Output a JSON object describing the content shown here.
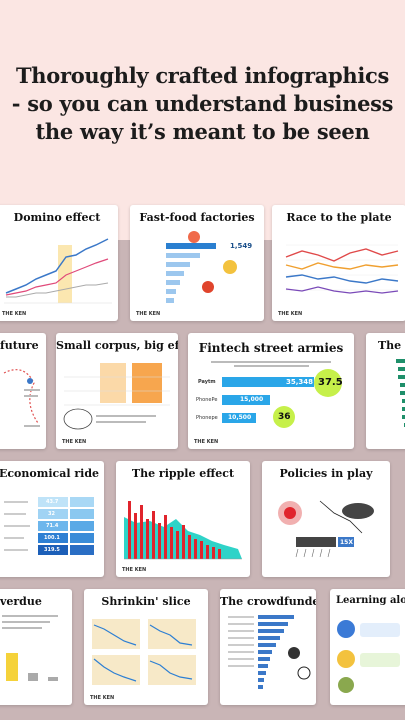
{
  "headline": {
    "line1": "Thoroughly crafted infographics",
    "line2": "- so you can understand business",
    "line3": "the way it’s meant to be seen"
  },
  "cards": {
    "domino": {
      "title": "Domino effect"
    },
    "fastfood": {
      "title": "Fast-food factories",
      "value": "1,549"
    },
    "race": {
      "title": "Race to the plate"
    },
    "future": {
      "title": "future"
    },
    "corpus": {
      "title": "Small corpus, big effort"
    },
    "fintech": {
      "title": "Fintech street armies",
      "rows": [
        {
          "label": "Paytm",
          "value": "35,348",
          "bubble": "37.5"
        },
        {
          "label": "PhonePe",
          "value": "15,000",
          "bubble": ""
        },
        {
          "label": "Phonepe",
          "value": "10,500",
          "bubble": "36"
        }
      ]
    },
    "thecr": {
      "title": "The cr"
    },
    "economical": {
      "title": "Economical ride",
      "values": [
        "43.7",
        "32",
        "71.4",
        "100.1",
        "319.5"
      ]
    },
    "ripple": {
      "title": "The ripple effect"
    },
    "policies": {
      "title": "Policies in play",
      "badge": "15X"
    },
    "overdue": {
      "title": "verdue"
    },
    "shrinkin": {
      "title": "Shrinkin' slice"
    },
    "crowdfunders": {
      "title": "The crowdfunders"
    },
    "learning": {
      "title": "Learning along the w"
    }
  },
  "brand": {
    "logo": "THE KEN"
  },
  "colors": {
    "background": "#fbe6e3",
    "band": "#c9b5b6",
    "accent_blue": "#2aa6e8",
    "accent_green": "#c6f04a",
    "accent_red": "#e0242c",
    "teal": "#2fd3c8"
  }
}
